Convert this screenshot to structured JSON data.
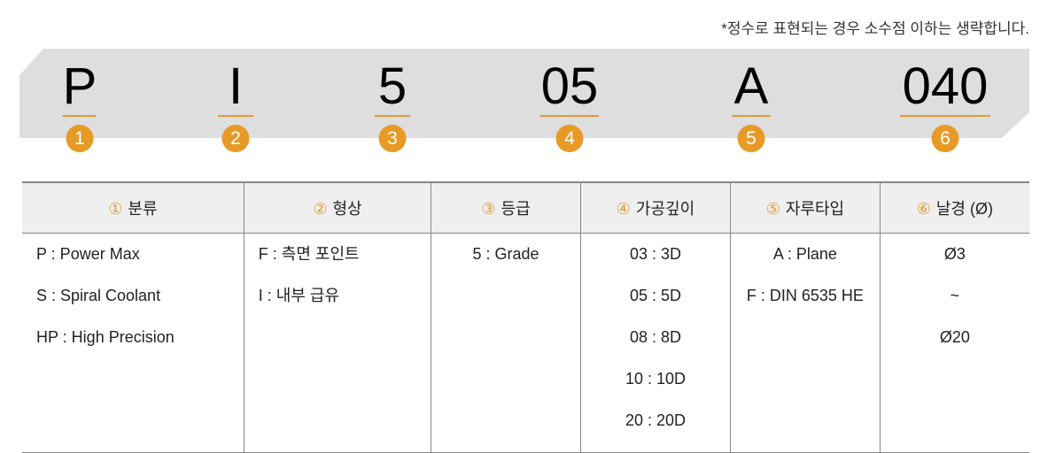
{
  "note": "*정수로 표현되는 경우 소수점 이하는 생략합니다.",
  "codes": [
    {
      "text": "P",
      "num": "1"
    },
    {
      "text": "I",
      "num": "2"
    },
    {
      "text": "5",
      "num": "3"
    },
    {
      "text": "05",
      "num": "4"
    },
    {
      "text": "A",
      "num": "5"
    },
    {
      "text": "040",
      "num": "6"
    }
  ],
  "table": {
    "headers": [
      {
        "num": "①",
        "label": "분류"
      },
      {
        "num": "②",
        "label": "형상"
      },
      {
        "num": "③",
        "label": "등급"
      },
      {
        "num": "④",
        "label": "가공깊이"
      },
      {
        "num": "⑤",
        "label": "자루타입"
      },
      {
        "num": "⑥",
        "label": "날경 (Ø)"
      }
    ],
    "columns": [
      [
        "P : Power Max",
        "S : Spiral Coolant",
        "HP : High Precision"
      ],
      [
        "F : 측면 포인트",
        "I : 내부 급유"
      ],
      [
        "5 : Grade"
      ],
      [
        "03 : 3D",
        "05 : 5D",
        "08 : 8D",
        "10 : 10D",
        "20 : 20D"
      ],
      [
        "A : Plane",
        "F : DIN 6535 HE"
      ],
      [
        "Ø3",
        "~",
        "Ø20"
      ]
    ]
  },
  "colors": {
    "accent": "#e89a26",
    "banner": "#dedede"
  }
}
